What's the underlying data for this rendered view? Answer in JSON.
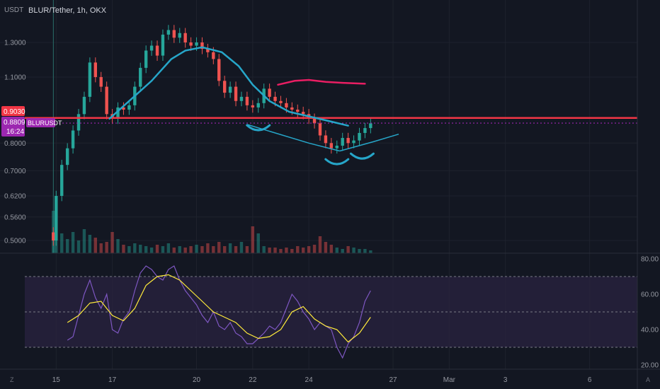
{
  "header": {
    "unit": "USDT",
    "symbol_title": "BLUR/Tether, 1h, OKX"
  },
  "colors": {
    "background": "#131722",
    "grid": "#1e222d",
    "up": "#26a69a",
    "down": "#ef5350",
    "resistance_line": "#f23645",
    "current_price": "#9c27b0",
    "trendline": "#26a6c9",
    "pink_curve": "#e91e63",
    "rsi": "#7e57c2",
    "rsi_ma": "#ffeb3b",
    "rsi_band": "#2a2340",
    "axis_text": "#9598a1"
  },
  "price_labels": {
    "resistance": "0.9030",
    "current": "0.8809",
    "ticker": "BLURUSDT",
    "countdown": "16:24"
  },
  "corner_icons": {
    "left": "Z",
    "right": "A"
  },
  "chart_data": [
    {
      "type": "line",
      "subtype": "candlestick",
      "title": "BLUR/Tether, 1h, OKX",
      "ylabel": "USDT",
      "y_scale": "log",
      "ylim": [
        0.45,
        1.62
      ],
      "y_ticks": [
        "1.3000",
        "1.1000",
        "0.8000",
        "0.7000",
        "0.6200",
        "0.5600",
        "0.5000"
      ],
      "x_ticks": [
        "15",
        "17",
        "20",
        "22",
        "24",
        "27",
        "Mar",
        "3",
        "6"
      ],
      "x_tick_days": [
        15,
        17,
        20,
        22,
        24,
        27,
        29,
        31,
        34
      ],
      "x_day_range": [
        13.0,
        35.7
      ],
      "series": [
        {
          "role": "close",
          "x": [
            14.9,
            15.0,
            15.2,
            15.4,
            15.6,
            15.8,
            16.0,
            16.2,
            16.4,
            16.6,
            16.8,
            17.0,
            17.2,
            17.4,
            17.6,
            17.8,
            18.0,
            18.2,
            18.4,
            18.6,
            18.8,
            19.0,
            19.2,
            19.4,
            19.6,
            19.8,
            20.0,
            20.2,
            20.4,
            20.6,
            20.8,
            21.0,
            21.2,
            21.4,
            21.6,
            21.8,
            22.0,
            22.2,
            22.4,
            22.6,
            22.8,
            23.0,
            23.2,
            23.4,
            23.6,
            23.8,
            24.0,
            24.2,
            24.4,
            24.6,
            24.8,
            25.0,
            25.2,
            25.4,
            25.6,
            25.8,
            26.0,
            26.2
          ],
          "values": [
            0.5,
            0.62,
            0.72,
            0.78,
            0.85,
            0.92,
            1.0,
            1.18,
            1.1,
            1.05,
            0.92,
            0.9,
            0.95,
            0.94,
            0.96,
            1.05,
            1.15,
            1.25,
            1.28,
            1.22,
            1.35,
            1.38,
            1.33,
            1.36,
            1.3,
            1.28,
            1.3,
            1.26,
            1.24,
            1.2,
            1.08,
            1.02,
            1.05,
            0.98,
            1.0,
            0.96,
            0.95,
            0.97,
            1.04,
            1.0,
            0.98,
            0.97,
            0.95,
            0.94,
            0.93,
            0.92,
            0.9,
            0.88,
            0.83,
            0.8,
            0.78,
            0.79,
            0.82,
            0.8,
            0.81,
            0.84,
            0.86,
            0.88
          ]
        },
        {
          "role": "volume",
          "x": [
            14.9,
            15.0,
            15.2,
            15.4,
            15.6,
            15.8,
            16.0,
            16.2,
            16.4,
            16.6,
            16.8,
            17.0,
            17.2,
            17.4,
            17.6,
            17.8,
            18.0,
            18.2,
            18.4,
            18.6,
            18.8,
            19.0,
            19.2,
            19.4,
            19.6,
            19.8,
            20.0,
            20.2,
            20.4,
            20.6,
            20.8,
            21.0,
            21.2,
            21.4,
            21.6,
            21.8,
            22.0,
            22.2,
            22.4,
            22.6,
            22.8,
            23.0,
            23.2,
            23.4,
            23.6,
            23.8,
            24.0,
            24.2,
            24.4,
            24.6,
            24.8,
            25.0,
            25.2,
            25.4,
            25.6,
            25.8,
            26.0,
            26.2
          ],
          "values": [
            60,
            50,
            28,
            20,
            30,
            18,
            34,
            26,
            22,
            14,
            16,
            30,
            20,
            12,
            10,
            14,
            12,
            10,
            8,
            12,
            10,
            14,
            8,
            10,
            8,
            10,
            12,
            10,
            14,
            10,
            16,
            10,
            14,
            10,
            16,
            10,
            38,
            28,
            10,
            8,
            8,
            6,
            8,
            6,
            10,
            8,
            10,
            12,
            24,
            16,
            12,
            8,
            6,
            10,
            8,
            6,
            6,
            4
          ]
        }
      ],
      "annotations": {
        "resistance_price": 0.903,
        "current_price": 0.8809,
        "rounded_top_curve": [
          [
            16.9,
            0.9
          ],
          [
            17.6,
            0.98
          ],
          [
            18.4,
            1.08
          ],
          [
            19.1,
            1.2
          ],
          [
            19.6,
            1.25
          ],
          [
            20.2,
            1.27
          ],
          [
            20.9,
            1.24
          ],
          [
            21.5,
            1.16
          ],
          [
            22.0,
            1.06
          ],
          [
            22.6,
            0.98
          ],
          [
            23.3,
            0.93
          ],
          [
            24.0,
            0.91
          ],
          [
            24.7,
            0.89
          ],
          [
            25.4,
            0.87
          ]
        ],
        "pink_curve": [
          [
            22.9,
            1.06
          ],
          [
            23.5,
            1.08
          ],
          [
            24.0,
            1.085
          ],
          [
            24.6,
            1.075
          ],
          [
            25.2,
            1.07
          ],
          [
            26.0,
            1.065
          ]
        ],
        "trendline_upper": [
          [
            21.8,
            0.875
          ],
          [
            24.0,
            0.8
          ],
          [
            25.1,
            0.77
          ]
        ],
        "trendline_lower": [
          [
            25.1,
            0.77
          ],
          [
            26.3,
            0.805
          ],
          [
            27.2,
            0.835
          ]
        ],
        "arcs_at": [
          [
            22.2,
            0.86
          ],
          [
            25.0,
            0.73
          ],
          [
            25.9,
            0.75
          ]
        ]
      }
    },
    {
      "type": "line",
      "title": "RSI",
      "ylim": [
        20,
        80
      ],
      "y_ticks": [
        "80.00",
        "60.00",
        "40.00",
        "20.00"
      ],
      "bands": [
        30,
        50,
        70
      ],
      "series": [
        {
          "role": "rsi",
          "x": [
            15.4,
            15.6,
            15.8,
            16.0,
            16.2,
            16.4,
            16.6,
            16.8,
            17.0,
            17.2,
            17.4,
            17.6,
            17.8,
            18.0,
            18.2,
            18.4,
            18.6,
            18.8,
            19.0,
            19.2,
            19.4,
            19.6,
            19.8,
            20.0,
            20.2,
            20.4,
            20.6,
            20.8,
            21.0,
            21.2,
            21.4,
            21.6,
            21.8,
            22.0,
            22.2,
            22.4,
            22.6,
            22.8,
            23.0,
            23.2,
            23.4,
            23.6,
            23.8,
            24.0,
            24.2,
            24.4,
            24.6,
            24.8,
            25.0,
            25.2,
            25.4,
            25.6,
            25.8,
            26.0,
            26.2
          ],
          "values": [
            34,
            36,
            48,
            60,
            68,
            58,
            52,
            60,
            40,
            38,
            46,
            50,
            62,
            72,
            76,
            74,
            70,
            68,
            74,
            76,
            68,
            62,
            58,
            54,
            48,
            44,
            50,
            42,
            40,
            44,
            38,
            36,
            32,
            32,
            35,
            38,
            42,
            40,
            44,
            52,
            60,
            56,
            50,
            46,
            40,
            44,
            42,
            40,
            30,
            24,
            32,
            36,
            44,
            56,
            62
          ]
        },
        {
          "role": "rsi_ma",
          "x": [
            15.4,
            15.8,
            16.2,
            16.6,
            17.0,
            17.4,
            17.8,
            18.2,
            18.6,
            19.0,
            19.4,
            19.8,
            20.2,
            20.6,
            21.0,
            21.4,
            21.8,
            22.2,
            22.6,
            23.0,
            23.4,
            23.8,
            24.2,
            24.6,
            25.0,
            25.4,
            25.8,
            26.2
          ],
          "values": [
            44,
            48,
            55,
            56,
            48,
            45,
            52,
            65,
            70,
            71,
            68,
            62,
            56,
            50,
            47,
            44,
            38,
            35,
            36,
            40,
            50,
            53,
            46,
            42,
            40,
            33,
            38,
            47
          ]
        }
      ]
    }
  ]
}
